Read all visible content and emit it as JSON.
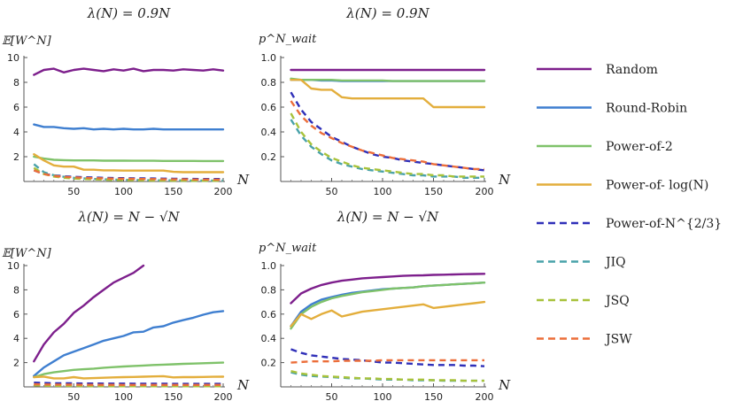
{
  "legend": [
    {
      "name": "Random",
      "color": "#7d1f8c",
      "dash": false
    },
    {
      "name": "Round-Robin",
      "color": "#3f7fd0",
      "dash": false
    },
    {
      "name": "Power-of-2",
      "color": "#7fc26a",
      "dash": false
    },
    {
      "name": "Power-of- log(N)",
      "color": "#e3ae3c",
      "dash": false
    },
    {
      "name": "Power-of-N^{2/3}",
      "color": "#2f2fb8",
      "dash": true
    },
    {
      "name": "JIQ",
      "color": "#49a2aa",
      "dash": true
    },
    {
      "name": "JSQ",
      "color": "#a8c23a",
      "dash": true
    },
    {
      "name": "JSW",
      "color": "#ec6e3a",
      "dash": true
    }
  ],
  "chart_data": [
    {
      "type": "line",
      "title": "λ(N) = 0.9N",
      "ylabel": "𝔼[W^N]",
      "xlabel": "N",
      "xlim": [
        0,
        200
      ],
      "ylim": [
        0,
        10
      ],
      "xticks": [
        50,
        100,
        150,
        200
      ],
      "yticks": [
        2,
        4,
        6,
        8,
        10
      ],
      "x": [
        10,
        20,
        30,
        40,
        50,
        60,
        70,
        80,
        90,
        100,
        110,
        120,
        130,
        140,
        150,
        160,
        170,
        180,
        190,
        200
      ],
      "series": [
        {
          "name": "Random",
          "values": [
            8.6,
            9.0,
            9.1,
            8.8,
            9.0,
            9.1,
            9.0,
            8.9,
            9.05,
            8.95,
            9.1,
            8.9,
            9.0,
            9.0,
            8.95,
            9.05,
            9.0,
            8.95,
            9.05,
            8.95
          ]
        },
        {
          "name": "Round-Robin",
          "values": [
            4.6,
            4.4,
            4.4,
            4.3,
            4.25,
            4.3,
            4.2,
            4.25,
            4.2,
            4.25,
            4.2,
            4.2,
            4.25,
            4.2,
            4.2,
            4.2,
            4.2,
            4.2,
            4.2,
            4.2
          ]
        },
        {
          "name": "Power-of-2",
          "values": [
            2.0,
            1.85,
            1.75,
            1.72,
            1.7,
            1.7,
            1.7,
            1.68,
            1.68,
            1.68,
            1.67,
            1.67,
            1.67,
            1.66,
            1.66,
            1.66,
            1.66,
            1.65,
            1.65,
            1.65
          ]
        },
        {
          "name": "Power-of- log(N)",
          "values": [
            2.2,
            1.7,
            1.3,
            1.2,
            1.2,
            0.95,
            0.95,
            0.9,
            0.9,
            0.88,
            0.88,
            0.88,
            0.88,
            0.88,
            0.78,
            0.75,
            0.75,
            0.75,
            0.75,
            0.75
          ]
        },
        {
          "name": "Power-of-N^{2/3}",
          "values": [
            0.9,
            0.6,
            0.5,
            0.42,
            0.38,
            0.35,
            0.32,
            0.3,
            0.28,
            0.27,
            0.26,
            0.25,
            0.24,
            0.23,
            0.22,
            0.21,
            0.21,
            0.2,
            0.2,
            0.2
          ]
        },
        {
          "name": "JIQ",
          "values": [
            1.4,
            0.75,
            0.5,
            0.38,
            0.3,
            0.25,
            0.2,
            0.17,
            0.15,
            0.13,
            0.12,
            0.11,
            0.1,
            0.09,
            0.09,
            0.08,
            0.08,
            0.07,
            0.07,
            0.07
          ]
        },
        {
          "name": "JSQ",
          "values": [
            1.1,
            0.6,
            0.4,
            0.3,
            0.24,
            0.2,
            0.17,
            0.14,
            0.12,
            0.11,
            0.1,
            0.09,
            0.08,
            0.08,
            0.07,
            0.07,
            0.06,
            0.06,
            0.06,
            0.06
          ]
        },
        {
          "name": "JSW",
          "values": [
            0.9,
            0.6,
            0.45,
            0.38,
            0.33,
            0.3,
            0.27,
            0.25,
            0.23,
            0.22,
            0.21,
            0.2,
            0.19,
            0.18,
            0.17,
            0.17,
            0.16,
            0.16,
            0.15,
            0.15
          ]
        }
      ]
    },
    {
      "type": "line",
      "title": "λ(N) = 0.9N",
      "ylabel": "p^N_wait",
      "xlabel": "N",
      "xlim": [
        0,
        200
      ],
      "ylim": [
        0,
        1
      ],
      "xticks": [
        50,
        100,
        150,
        200
      ],
      "yticks": [
        0.2,
        0.4,
        0.6,
        0.8,
        1.0
      ],
      "ytick_labels": [
        "0.2",
        "0.4",
        "0.6",
        "0.8",
        "1.0"
      ],
      "x": [
        10,
        20,
        30,
        40,
        50,
        60,
        70,
        80,
        90,
        100,
        110,
        120,
        130,
        140,
        150,
        160,
        170,
        180,
        190,
        200
      ],
      "series": [
        {
          "name": "Random",
          "values": [
            0.9,
            0.9,
            0.9,
            0.9,
            0.9,
            0.9,
            0.9,
            0.9,
            0.9,
            0.9,
            0.9,
            0.9,
            0.9,
            0.9,
            0.9,
            0.9,
            0.9,
            0.9,
            0.9,
            0.9
          ]
        },
        {
          "name": "Round-Robin",
          "values": [
            0.82,
            0.82,
            0.82,
            0.815,
            0.815,
            0.81,
            0.81,
            0.81,
            0.81,
            0.81,
            0.81,
            0.81,
            0.81,
            0.81,
            0.81,
            0.81,
            0.81,
            0.81,
            0.81,
            0.81
          ]
        },
        {
          "name": "Power-of-2",
          "values": [
            0.83,
            0.82,
            0.82,
            0.82,
            0.82,
            0.815,
            0.815,
            0.815,
            0.815,
            0.815,
            0.81,
            0.81,
            0.81,
            0.81,
            0.81,
            0.81,
            0.81,
            0.81,
            0.81,
            0.81
          ]
        },
        {
          "name": "Power-of- log(N)",
          "values": [
            0.82,
            0.82,
            0.75,
            0.74,
            0.74,
            0.68,
            0.67,
            0.67,
            0.67,
            0.67,
            0.67,
            0.67,
            0.67,
            0.67,
            0.6,
            0.6,
            0.6,
            0.6,
            0.6,
            0.6
          ]
        },
        {
          "name": "Power-of-N^{2/3}",
          "values": [
            0.72,
            0.58,
            0.48,
            0.42,
            0.36,
            0.32,
            0.28,
            0.25,
            0.22,
            0.2,
            0.19,
            0.17,
            0.16,
            0.15,
            0.14,
            0.13,
            0.12,
            0.11,
            0.1,
            0.09
          ]
        },
        {
          "name": "JIQ",
          "values": [
            0.5,
            0.37,
            0.28,
            0.22,
            0.17,
            0.14,
            0.12,
            0.1,
            0.09,
            0.08,
            0.07,
            0.06,
            0.05,
            0.05,
            0.04,
            0.04,
            0.04,
            0.03,
            0.03,
            0.03
          ]
        },
        {
          "name": "JSQ",
          "values": [
            0.55,
            0.4,
            0.3,
            0.24,
            0.19,
            0.16,
            0.13,
            0.11,
            0.1,
            0.09,
            0.08,
            0.07,
            0.06,
            0.06,
            0.05,
            0.05,
            0.04,
            0.04,
            0.04,
            0.04
          ]
        },
        {
          "name": "JSW",
          "values": [
            0.65,
            0.53,
            0.45,
            0.39,
            0.35,
            0.31,
            0.28,
            0.25,
            0.23,
            0.21,
            0.19,
            0.18,
            0.17,
            0.16,
            0.14,
            0.13,
            0.12,
            0.11,
            0.1,
            0.1
          ]
        }
      ]
    },
    {
      "type": "line",
      "title": "λ(N) = N − √N",
      "ylabel": "𝔼[W^N]",
      "xlabel": "N",
      "xlim": [
        0,
        200
      ],
      "ylim": [
        0,
        10
      ],
      "xticks": [
        50,
        100,
        150,
        200
      ],
      "yticks": [
        2,
        4,
        6,
        8,
        10
      ],
      "x": [
        10,
        20,
        30,
        40,
        50,
        60,
        70,
        80,
        90,
        100,
        110,
        120,
        130,
        140,
        150,
        160,
        170,
        180,
        190,
        200
      ],
      "series": [
        {
          "name": "Random",
          "x": [
            10,
            20,
            30,
            40,
            50,
            60,
            70,
            80,
            90,
            100,
            110,
            120
          ],
          "values": [
            2.1,
            3.5,
            4.5,
            5.2,
            6.1,
            6.7,
            7.4,
            8.0,
            8.6,
            9.0,
            9.4,
            10.0
          ]
        },
        {
          "name": "Round-Robin",
          "values": [
            0.9,
            1.6,
            2.1,
            2.6,
            2.9,
            3.2,
            3.5,
            3.8,
            4.0,
            4.2,
            4.5,
            4.55,
            4.9,
            5.0,
            5.3,
            5.5,
            5.7,
            5.95,
            6.15,
            6.25
          ]
        },
        {
          "name": "Power-of-2",
          "values": [
            0.8,
            1.05,
            1.2,
            1.3,
            1.4,
            1.45,
            1.5,
            1.58,
            1.63,
            1.68,
            1.72,
            1.76,
            1.8,
            1.83,
            1.86,
            1.9,
            1.92,
            1.95,
            1.98,
            2.0
          ]
        },
        {
          "name": "Power-of- log(N)",
          "values": [
            0.8,
            0.85,
            0.7,
            0.7,
            0.8,
            0.7,
            0.72,
            0.75,
            0.78,
            0.8,
            0.82,
            0.84,
            0.86,
            0.88,
            0.78,
            0.8,
            0.8,
            0.82,
            0.83,
            0.84
          ]
        },
        {
          "name": "Power-of-N^{2/3}",
          "values": [
            0.35,
            0.32,
            0.3,
            0.3,
            0.29,
            0.28,
            0.28,
            0.27,
            0.27,
            0.27,
            0.26,
            0.26,
            0.26,
            0.26,
            0.25,
            0.25,
            0.25,
            0.25,
            0.25,
            0.25
          ]
        },
        {
          "name": "JIQ",
          "values": [
            0.15,
            0.12,
            0.1,
            0.09,
            0.08,
            0.08,
            0.07,
            0.07,
            0.07,
            0.06,
            0.06,
            0.06,
            0.06,
            0.06,
            0.06,
            0.05,
            0.05,
            0.05,
            0.05,
            0.05
          ]
        },
        {
          "name": "JSQ",
          "values": [
            0.13,
            0.1,
            0.09,
            0.08,
            0.07,
            0.07,
            0.06,
            0.06,
            0.06,
            0.05,
            0.05,
            0.05,
            0.05,
            0.05,
            0.05,
            0.05,
            0.05,
            0.05,
            0.05,
            0.05
          ]
        },
        {
          "name": "JSW",
          "values": [
            0.22,
            0.2,
            0.19,
            0.18,
            0.18,
            0.17,
            0.17,
            0.17,
            0.17,
            0.16,
            0.16,
            0.16,
            0.16,
            0.16,
            0.16,
            0.16,
            0.16,
            0.16,
            0.16,
            0.16
          ]
        }
      ]
    },
    {
      "type": "line",
      "title": "λ(N) = N − √N",
      "ylabel": "p^N_wait",
      "xlabel": "N",
      "xlim": [
        0,
        200
      ],
      "ylim": [
        0,
        1
      ],
      "xticks": [
        50,
        100,
        150,
        200
      ],
      "yticks": [
        0.2,
        0.4,
        0.6,
        0.8,
        1.0
      ],
      "ytick_labels": [
        "0.2",
        "0.4",
        "0.6",
        "0.8",
        "1.0"
      ],
      "x": [
        10,
        20,
        30,
        40,
        50,
        60,
        70,
        80,
        90,
        100,
        110,
        120,
        130,
        140,
        150,
        160,
        170,
        180,
        190,
        200
      ],
      "series": [
        {
          "name": "Random",
          "values": [
            0.69,
            0.77,
            0.81,
            0.84,
            0.86,
            0.875,
            0.885,
            0.895,
            0.9,
            0.905,
            0.91,
            0.915,
            0.918,
            0.92,
            0.923,
            0.925,
            0.927,
            0.929,
            0.931,
            0.932
          ]
        },
        {
          "name": "Round-Robin",
          "values": [
            0.5,
            0.62,
            0.68,
            0.72,
            0.74,
            0.76,
            0.775,
            0.785,
            0.795,
            0.805,
            0.81,
            0.815,
            0.82,
            0.83,
            0.835,
            0.84,
            0.845,
            0.85,
            0.855,
            0.86
          ]
        },
        {
          "name": "Power-of-2",
          "values": [
            0.48,
            0.6,
            0.66,
            0.7,
            0.73,
            0.75,
            0.765,
            0.78,
            0.79,
            0.8,
            0.81,
            0.815,
            0.82,
            0.83,
            0.835,
            0.84,
            0.845,
            0.85,
            0.855,
            0.86
          ]
        },
        {
          "name": "Power-of- log(N)",
          "values": [
            0.5,
            0.6,
            0.56,
            0.6,
            0.63,
            0.58,
            0.6,
            0.62,
            0.63,
            0.64,
            0.65,
            0.66,
            0.67,
            0.68,
            0.65,
            0.66,
            0.67,
            0.68,
            0.69,
            0.7
          ]
        },
        {
          "name": "Power-of-N^{2/3}",
          "values": [
            0.31,
            0.28,
            0.26,
            0.25,
            0.24,
            0.23,
            0.225,
            0.22,
            0.21,
            0.2,
            0.2,
            0.195,
            0.19,
            0.185,
            0.18,
            0.18,
            0.18,
            0.175,
            0.175,
            0.17
          ]
        },
        {
          "name": "JIQ",
          "values": [
            0.12,
            0.1,
            0.09,
            0.085,
            0.08,
            0.075,
            0.07,
            0.07,
            0.065,
            0.06,
            0.06,
            0.06,
            0.055,
            0.055,
            0.055,
            0.05,
            0.05,
            0.05,
            0.05,
            0.05
          ]
        },
        {
          "name": "JSQ",
          "values": [
            0.13,
            0.11,
            0.1,
            0.09,
            0.085,
            0.08,
            0.075,
            0.07,
            0.07,
            0.065,
            0.065,
            0.06,
            0.06,
            0.06,
            0.055,
            0.055,
            0.055,
            0.05,
            0.05,
            0.05
          ]
        },
        {
          "name": "JSW",
          "values": [
            0.2,
            0.205,
            0.21,
            0.21,
            0.21,
            0.215,
            0.215,
            0.215,
            0.215,
            0.22,
            0.22,
            0.22,
            0.22,
            0.22,
            0.22,
            0.22,
            0.22,
            0.22,
            0.22,
            0.22
          ]
        }
      ]
    }
  ]
}
